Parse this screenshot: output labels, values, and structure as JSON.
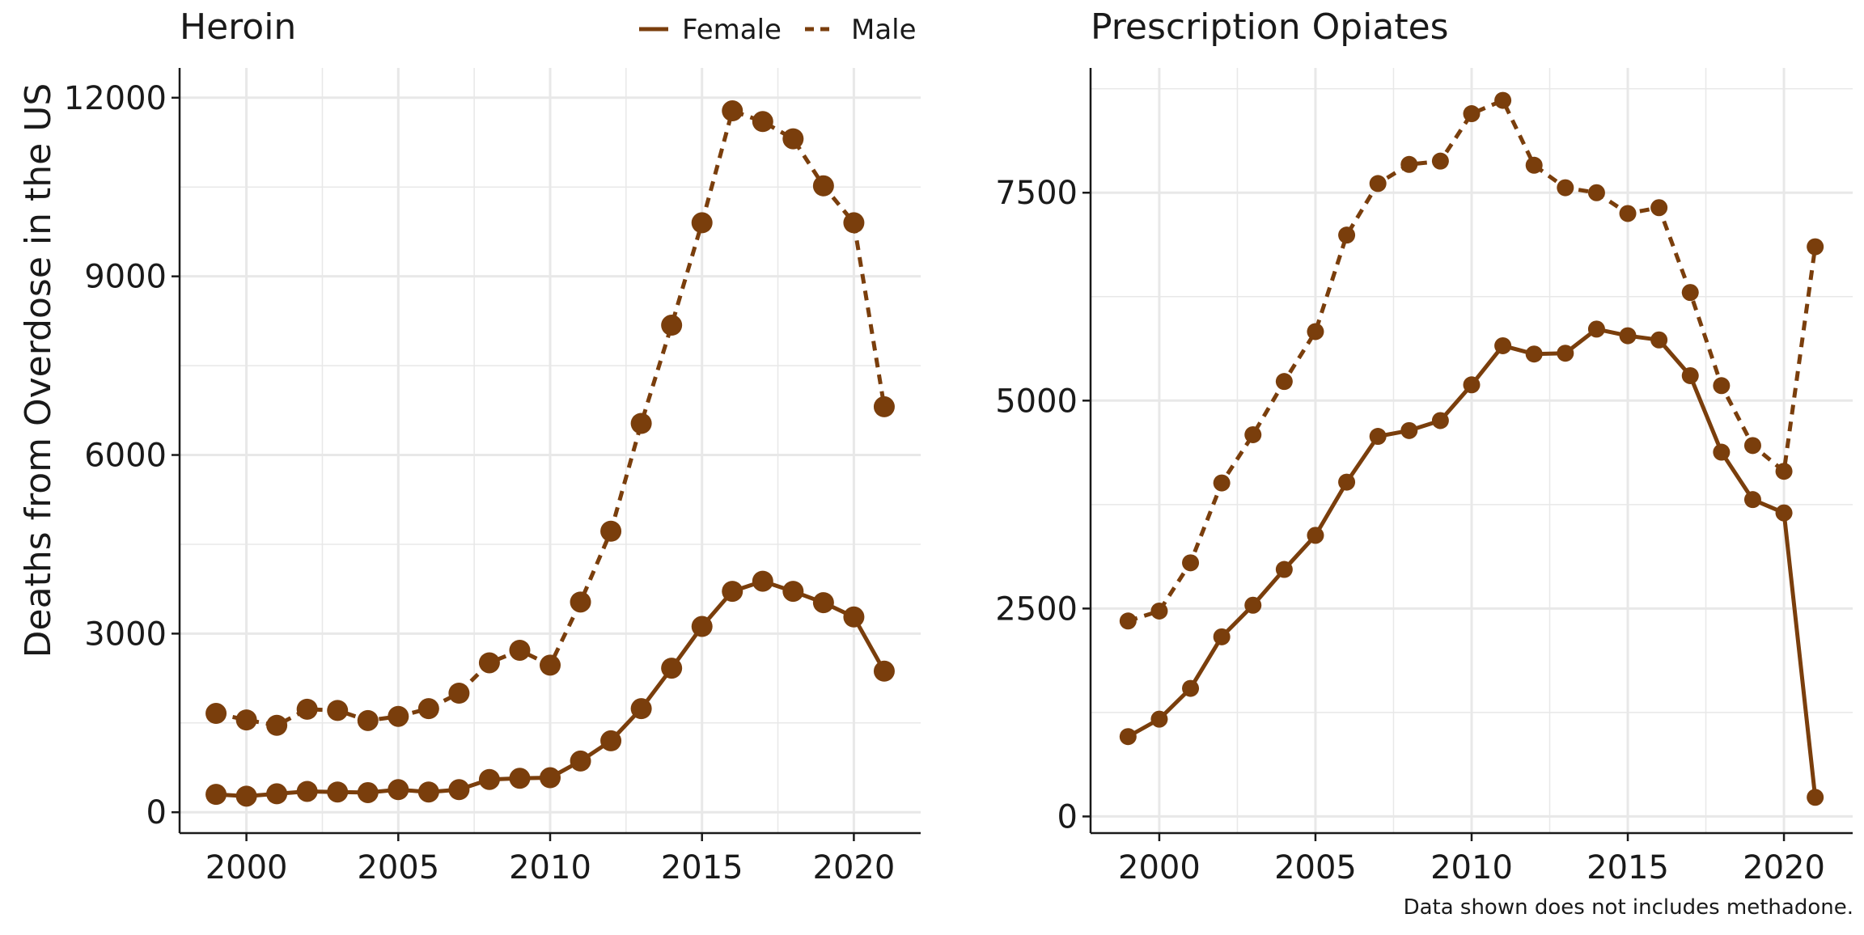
{
  "colors": {
    "series": "#7a3e0c",
    "grid": "#e8e8e8",
    "axis": "#1a1a1a"
  },
  "caption": "Data shown does not includes methadone.",
  "legend": {
    "placement": "top-right",
    "items": [
      {
        "label": "Female",
        "line_style": "solid"
      },
      {
        "label": "Male",
        "line_style": "dashed"
      }
    ]
  },
  "chart_data": [
    {
      "type": "line",
      "title": "Heroin",
      "ylabel": "Deaths from Overdose in the US",
      "xlabel": "",
      "grid": true,
      "xlim": [
        1997.8,
        2022.2
      ],
      "ylim": [
        -350,
        12500
      ],
      "xticks": [
        2000,
        2005,
        2010,
        2015,
        2020
      ],
      "yticks": [
        0,
        3000,
        6000,
        9000,
        12000
      ],
      "x": [
        1999,
        2000,
        2001,
        2002,
        2003,
        2004,
        2005,
        2006,
        2007,
        2008,
        2009,
        2010,
        2011,
        2012,
        2013,
        2014,
        2015,
        2016,
        2017,
        2018,
        2019,
        2020,
        2021
      ],
      "series": [
        {
          "name": "Female",
          "line_style": "solid",
          "values": [
            300,
            270,
            310,
            350,
            340,
            330,
            380,
            340,
            380,
            550,
            570,
            580,
            860,
            1200,
            1740,
            2420,
            3120,
            3710,
            3880,
            3710,
            3520,
            3280,
            2370
          ]
        },
        {
          "name": "Male",
          "line_style": "dashed",
          "values": [
            1660,
            1550,
            1460,
            1730,
            1710,
            1540,
            1610,
            1740,
            2000,
            2510,
            2720,
            2470,
            3530,
            4720,
            6530,
            8180,
            9900,
            11780,
            11600,
            11310,
            10520,
            9900,
            6810
          ]
        }
      ]
    },
    {
      "type": "line",
      "title": "Prescription Opiates",
      "ylabel": "",
      "xlabel": "",
      "grid": true,
      "xlim": [
        1997.8,
        2022.2
      ],
      "ylim": [
        -200,
        9000
      ],
      "xticks": [
        2000,
        2005,
        2010,
        2015,
        2020
      ],
      "yticks": [
        0,
        2500,
        5000,
        7500
      ],
      "x": [
        1999,
        2000,
        2001,
        2002,
        2003,
        2004,
        2005,
        2006,
        2007,
        2008,
        2009,
        2010,
        2011,
        2012,
        2013,
        2014,
        2015,
        2016,
        2017,
        2018,
        2019,
        2020,
        2021
      ],
      "series": [
        {
          "name": "Female",
          "line_style": "solid",
          "values": [
            960,
            1170,
            1540,
            2160,
            2540,
            2970,
            3380,
            4020,
            4570,
            4640,
            4760,
            5190,
            5660,
            5560,
            5570,
            5860,
            5780,
            5730,
            5300,
            4380,
            3810,
            3650,
            230
          ]
        },
        {
          "name": "Male",
          "line_style": "dashed",
          "values": [
            2350,
            2470,
            3050,
            4010,
            4590,
            5230,
            5830,
            6990,
            7610,
            7840,
            7880,
            8450,
            8610,
            7830,
            7560,
            7500,
            7250,
            7320,
            6300,
            5180,
            4460,
            4150,
            6850
          ]
        }
      ]
    }
  ]
}
